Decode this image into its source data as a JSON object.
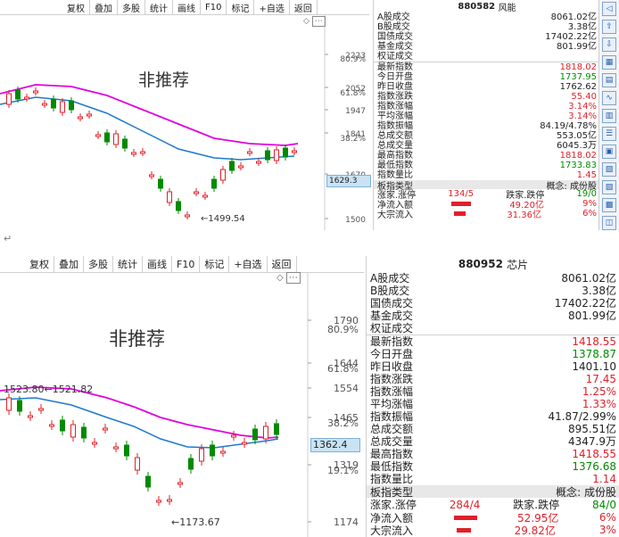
{
  "top": {
    "toolbar": [
      "复权",
      "叠加",
      "多股",
      "统计",
      "画线",
      "F10",
      "标记",
      "+自选",
      "返回"
    ],
    "watermark": "非推荐",
    "low_label": "←1499.54",
    "price_ticks": [
      "2223",
      "2052",
      "1947",
      "1841",
      "1670",
      "1500"
    ],
    "pct_ticks": [
      "80.9%",
      "61.8%",
      "38.2%"
    ],
    "current_price": "1629.3",
    "code": "880582",
    "name": "风能",
    "stats": [
      {
        "label": "A股成交",
        "value": "8061.02亿",
        "color": "blk"
      },
      {
        "label": "B股成交",
        "value": "3.38亿",
        "color": "blk"
      },
      {
        "label": "国债成交",
        "value": "17402.22亿",
        "color": "blk"
      },
      {
        "label": "基金成交",
        "value": "801.99亿",
        "color": "blk"
      },
      {
        "label": "权证成交",
        "value": "",
        "color": "blk"
      },
      {
        "label": "最新指数",
        "value": "1818.02",
        "color": "red"
      },
      {
        "label": "今日开盘",
        "value": "1737.95",
        "color": "green"
      },
      {
        "label": "昨日收盘",
        "value": "1762.62",
        "color": "blk"
      },
      {
        "label": "指数涨跌",
        "value": "55.40",
        "color": "red"
      },
      {
        "label": "指数涨幅",
        "value": "3.14%",
        "color": "red"
      },
      {
        "label": "平均涨幅",
        "value": "3.14%",
        "color": "red"
      },
      {
        "label": "指数振幅",
        "value": "84.19/4.78%",
        "color": "blk"
      },
      {
        "label": "总成交额",
        "value": "553.05亿",
        "color": "blk"
      },
      {
        "label": "总成交量",
        "value": "6045.3万",
        "color": "blk"
      },
      {
        "label": "最高指数",
        "value": "1818.02",
        "color": "red"
      },
      {
        "label": "最低指数",
        "value": "1733.83",
        "color": "green"
      },
      {
        "label": "指数量比",
        "value": "1.45",
        "color": "red"
      }
    ],
    "board_type_label": "板指类型",
    "board_type_value": "概念: 成份股",
    "rise_fall": {
      "up_label": "涨家.涨停",
      "up_value": "134/5",
      "down_label": "跌家.跌停",
      "down_value": "19/0"
    },
    "flows": [
      {
        "label": "净流入额",
        "value": "49.20亿",
        "pct": "9%"
      },
      {
        "label": "大宗流入",
        "value": "31.36亿",
        "pct": "6%"
      }
    ]
  },
  "bottom": {
    "toolbar": [
      "复权",
      "叠加",
      "多股",
      "统计",
      "画线",
      "F10",
      "标记",
      "+自选",
      "返回"
    ],
    "watermark": "非推荐",
    "low_label": "←1173.67",
    "range_label": "1523.80←1521.82",
    "price_ticks": [
      "1790",
      "1644",
      "1554",
      "1465",
      "1319",
      "1174"
    ],
    "pct_ticks": [
      "80.9%",
      "61.8%",
      "38.2%",
      "19.1%"
    ],
    "current_price": "1362.4",
    "code": "880952",
    "name": "芯片",
    "stats": [
      {
        "label": "A股成交",
        "value": "8061.02亿",
        "color": "blk"
      },
      {
        "label": "B股成交",
        "value": "3.38亿",
        "color": "blk"
      },
      {
        "label": "国债成交",
        "value": "17402.22亿",
        "color": "blk"
      },
      {
        "label": "基金成交",
        "value": "801.99亿",
        "color": "blk"
      },
      {
        "label": "权证成交",
        "value": "",
        "color": "blk"
      },
      {
        "label": "最新指数",
        "value": "1418.55",
        "color": "red"
      },
      {
        "label": "今日开盘",
        "value": "1378.87",
        "color": "green"
      },
      {
        "label": "昨日收盘",
        "value": "1401.10",
        "color": "blk"
      },
      {
        "label": "指数涨跌",
        "value": "17.45",
        "color": "red"
      },
      {
        "label": "指数涨幅",
        "value": "1.25%",
        "color": "red"
      },
      {
        "label": "平均涨幅",
        "value": "1.33%",
        "color": "red"
      },
      {
        "label": "指数振幅",
        "value": "41.87/2.99%",
        "color": "blk"
      },
      {
        "label": "总成交额",
        "value": "895.51亿",
        "color": "blk"
      },
      {
        "label": "总成交量",
        "value": "4347.9万",
        "color": "blk"
      },
      {
        "label": "最高指数",
        "value": "1418.55",
        "color": "red"
      },
      {
        "label": "最低指数",
        "value": "1376.68",
        "color": "green"
      },
      {
        "label": "指数量比",
        "value": "1.14",
        "color": "red"
      }
    ],
    "board_type_label": "板指类型",
    "board_type_value": "概念: 成份股",
    "rise_fall": {
      "up_label": "涨家.涨停",
      "up_value": "284/4",
      "down_label": "跌家.跌停",
      "down_value": "84/0"
    },
    "flows": [
      {
        "label": "净流入额",
        "value": "52.95亿",
        "pct": "6%"
      },
      {
        "label": "大宗流入",
        "value": "29.82亿",
        "pct": "3%"
      }
    ]
  },
  "separator_mark": "↵",
  "colors": {
    "ma_magenta": "#e000e0",
    "ma_blue": "#1e78d0",
    "up": "#e0202a",
    "down": "#008a00"
  }
}
